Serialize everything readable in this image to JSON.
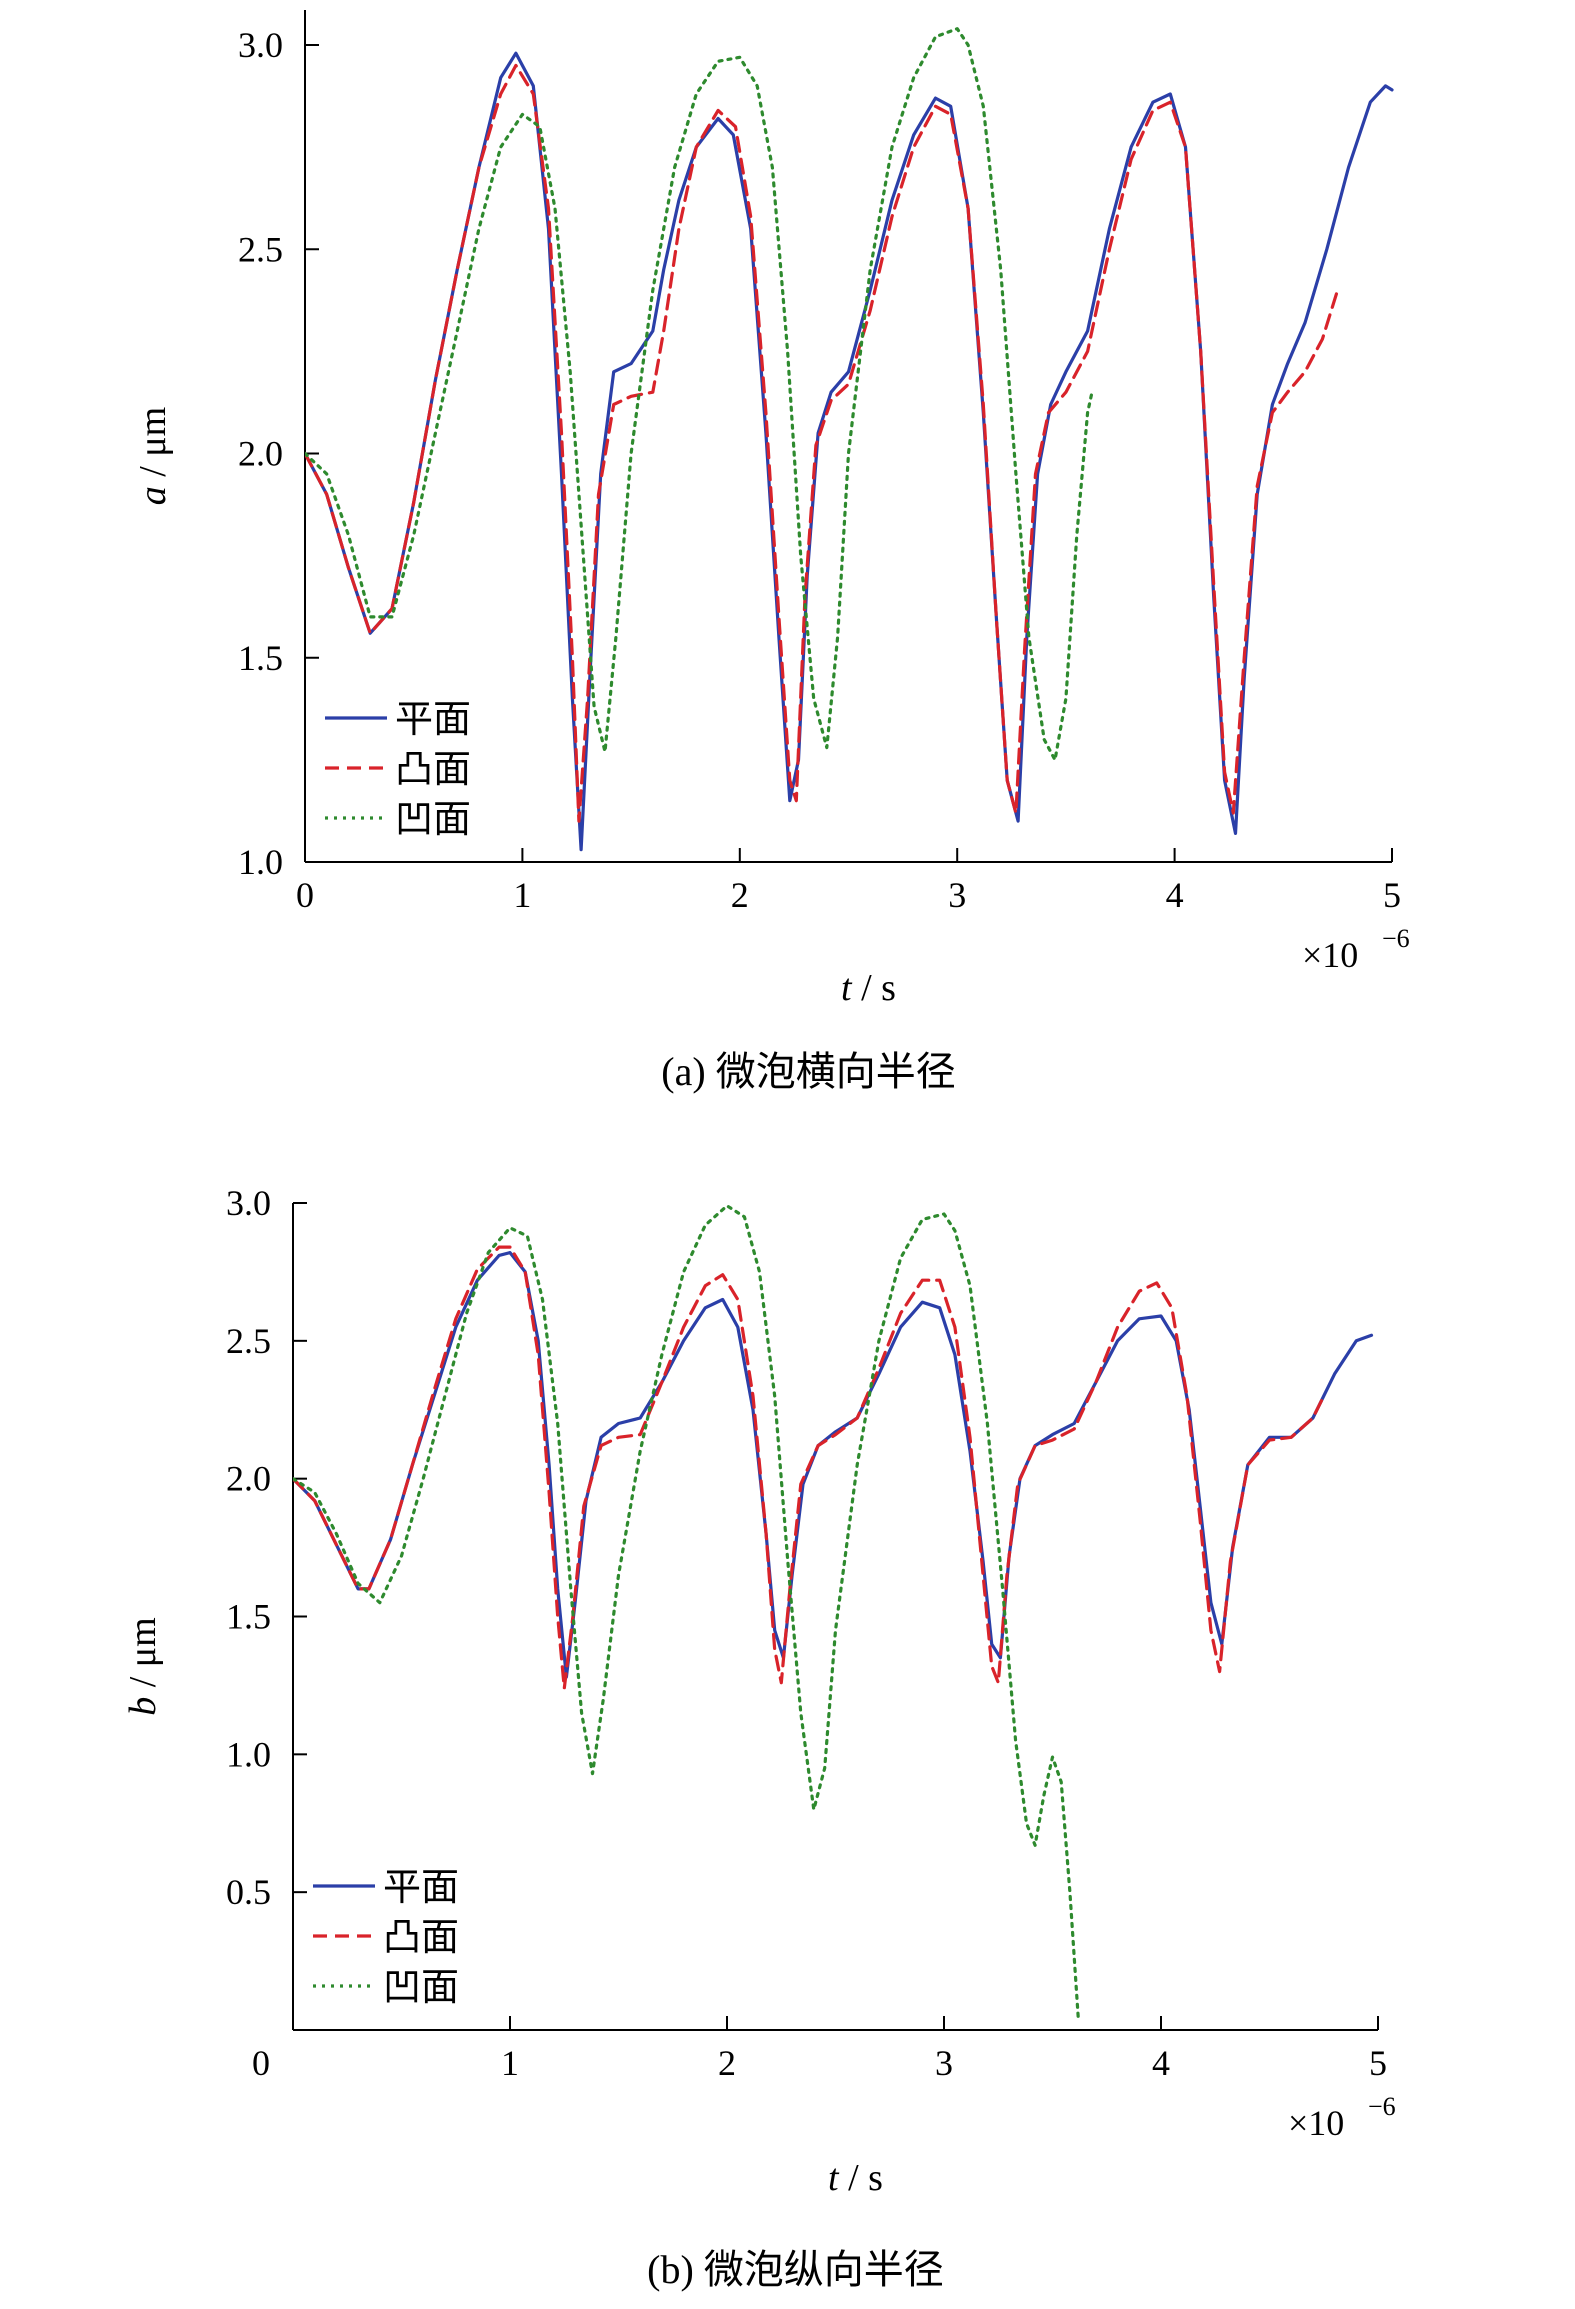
{
  "chart_data": [
    {
      "type": "line",
      "caption": "(a) 微泡横向半径",
      "xlabel": {
        "var": "t",
        "unit": " / s"
      },
      "ylabel": {
        "var": "a",
        "unit": " / μm"
      },
      "x_multiplier": "×10",
      "x_exponent": "−6",
      "xlim": [
        0,
        5
      ],
      "ylim": [
        1.0,
        3.1
      ],
      "xticks": [
        0,
        1,
        2,
        3,
        4,
        5
      ],
      "xtick_labels": [
        "0",
        "1",
        "2",
        "3",
        "4",
        "5"
      ],
      "yticks": [
        1.0,
        1.5,
        2.0,
        2.5,
        3.0
      ],
      "ytick_labels": [
        "1.0",
        "1.5",
        "2.0",
        "2.5",
        "3.0"
      ],
      "legend_placement": "bottom-left",
      "grid": false,
      "series": [
        {
          "name": "平面",
          "color": "#2b3fa8",
          "style": "solid",
          "x": [
            0,
            0.1,
            0.2,
            0.3,
            0.4,
            0.5,
            0.6,
            0.7,
            0.8,
            0.9,
            0.97,
            1.05,
            1.12,
            1.18,
            1.23,
            1.27,
            1.31,
            1.36,
            1.42,
            1.5,
            1.6,
            1.65,
            1.72,
            1.8,
            1.9,
            1.97,
            2.05,
            2.12,
            2.18,
            2.23,
            2.27,
            2.31,
            2.36,
            2.42,
            2.5,
            2.6,
            2.7,
            2.8,
            2.9,
            2.97,
            3.05,
            3.12,
            3.18,
            3.23,
            3.28,
            3.32,
            3.37,
            3.43,
            3.5,
            3.6,
            3.7,
            3.8,
            3.9,
            3.98,
            4.05,
            4.12,
            4.18,
            4.23,
            4.28,
            4.32,
            4.38,
            4.45,
            4.52,
            4.6,
            4.7,
            4.8,
            4.9,
            4.97,
            5.0
          ],
          "y": [
            2.0,
            1.9,
            1.72,
            1.56,
            1.62,
            1.88,
            2.18,
            2.45,
            2.7,
            2.92,
            2.98,
            2.9,
            2.55,
            1.95,
            1.4,
            1.03,
            1.45,
            1.95,
            2.2,
            2.22,
            2.3,
            2.45,
            2.62,
            2.75,
            2.82,
            2.78,
            2.55,
            2.05,
            1.55,
            1.15,
            1.25,
            1.7,
            2.05,
            2.15,
            2.2,
            2.4,
            2.62,
            2.78,
            2.87,
            2.85,
            2.6,
            2.1,
            1.6,
            1.2,
            1.1,
            1.55,
            1.95,
            2.12,
            2.2,
            2.3,
            2.55,
            2.75,
            2.86,
            2.88,
            2.75,
            2.25,
            1.65,
            1.2,
            1.07,
            1.45,
            1.9,
            2.12,
            2.22,
            2.32,
            2.5,
            2.7,
            2.86,
            2.9,
            2.89
          ]
        },
        {
          "name": "凸面",
          "color": "#d9232a",
          "style": "dashed",
          "x": [
            0,
            0.1,
            0.2,
            0.3,
            0.4,
            0.5,
            0.6,
            0.7,
            0.8,
            0.9,
            0.97,
            1.05,
            1.12,
            1.18,
            1.23,
            1.26,
            1.3,
            1.35,
            1.42,
            1.5,
            1.6,
            1.65,
            1.72,
            1.8,
            1.9,
            1.98,
            2.05,
            2.12,
            2.18,
            2.23,
            2.26,
            2.3,
            2.35,
            2.42,
            2.5,
            2.6,
            2.7,
            2.8,
            2.9,
            2.97,
            3.05,
            3.12,
            3.18,
            3.23,
            3.27,
            3.31,
            3.36,
            3.42,
            3.5,
            3.6,
            3.7,
            3.8,
            3.9,
            3.98,
            4.05,
            4.12,
            4.18,
            4.23,
            4.27,
            4.32,
            4.38,
            4.45,
            4.52,
            4.6,
            4.68,
            4.75
          ],
          "y": [
            2.0,
            1.9,
            1.72,
            1.56,
            1.62,
            1.88,
            2.18,
            2.45,
            2.7,
            2.88,
            2.95,
            2.88,
            2.6,
            2.05,
            1.5,
            1.1,
            1.4,
            1.9,
            2.12,
            2.14,
            2.15,
            2.3,
            2.55,
            2.75,
            2.84,
            2.8,
            2.58,
            2.1,
            1.6,
            1.2,
            1.15,
            1.65,
            2.02,
            2.13,
            2.17,
            2.35,
            2.58,
            2.75,
            2.85,
            2.83,
            2.6,
            2.12,
            1.6,
            1.2,
            1.12,
            1.52,
            1.95,
            2.1,
            2.15,
            2.25,
            2.5,
            2.72,
            2.84,
            2.86,
            2.75,
            2.25,
            1.68,
            1.22,
            1.12,
            1.5,
            1.92,
            2.1,
            2.15,
            2.2,
            2.28,
            2.4
          ]
        },
        {
          "name": "凹面",
          "color": "#2e8a2e",
          "style": "dotted",
          "x": [
            0,
            0.1,
            0.2,
            0.3,
            0.4,
            0.5,
            0.6,
            0.7,
            0.8,
            0.9,
            1.0,
            1.08,
            1.15,
            1.22,
            1.28,
            1.33,
            1.38,
            1.43,
            1.5,
            1.6,
            1.7,
            1.8,
            1.9,
            2.0,
            2.08,
            2.15,
            2.22,
            2.28,
            2.34,
            2.4,
            2.45,
            2.5,
            2.6,
            2.7,
            2.8,
            2.9,
            3.0,
            3.05,
            3.12,
            3.2,
            3.27,
            3.33,
            3.4,
            3.45,
            3.5,
            3.55,
            3.6,
            3.62
          ],
          "y": [
            2.0,
            1.95,
            1.8,
            1.6,
            1.6,
            1.8,
            2.05,
            2.3,
            2.55,
            2.75,
            2.83,
            2.8,
            2.6,
            2.2,
            1.75,
            1.38,
            1.27,
            1.55,
            2.0,
            2.4,
            2.7,
            2.88,
            2.96,
            2.97,
            2.9,
            2.7,
            2.25,
            1.75,
            1.4,
            1.28,
            1.55,
            2.0,
            2.45,
            2.75,
            2.92,
            3.02,
            3.04,
            3.0,
            2.85,
            2.45,
            1.95,
            1.55,
            1.3,
            1.25,
            1.4,
            1.8,
            2.1,
            2.15
          ]
        }
      ]
    },
    {
      "type": "line",
      "caption": "(b) 微泡纵向半径",
      "xlabel": {
        "var": "t",
        "unit": " / s"
      },
      "ylabel": {
        "var": "b",
        "unit": " / μm"
      },
      "x_multiplier": "×10",
      "x_exponent": "−6",
      "xlim": [
        0,
        5
      ],
      "ylim": [
        0,
        3.0
      ],
      "xticks": [
        0,
        1,
        2,
        3,
        4,
        5
      ],
      "xtick_labels": [
        "0",
        "1",
        "2",
        "3",
        "4",
        "5"
      ],
      "yticks": [
        0.5,
        1.0,
        1.5,
        2.0,
        2.5,
        3.0
      ],
      "ytick_labels": [
        "0.5",
        "1.0",
        "1.5",
        "2.0",
        "2.5",
        "3.0"
      ],
      "origin_label": "0",
      "legend_placement": "bottom-left",
      "grid": false,
      "series": [
        {
          "name": "平面",
          "color": "#2b3fa8",
          "style": "solid",
          "x": [
            0,
            0.1,
            0.2,
            0.3,
            0.35,
            0.45,
            0.55,
            0.65,
            0.75,
            0.85,
            0.95,
            1.0,
            1.07,
            1.13,
            1.18,
            1.22,
            1.26,
            1.3,
            1.35,
            1.42,
            1.5,
            1.6,
            1.7,
            1.8,
            1.9,
            1.98,
            2.05,
            2.12,
            2.18,
            2.22,
            2.26,
            2.3,
            2.35,
            2.42,
            2.5,
            2.6,
            2.7,
            2.8,
            2.9,
            2.98,
            3.05,
            3.12,
            3.18,
            3.22,
            3.26,
            3.3,
            3.35,
            3.42,
            3.5,
            3.6,
            3.7,
            3.8,
            3.9,
            4.0,
            4.07,
            4.13,
            4.18,
            4.23,
            4.28,
            4.33,
            4.4,
            4.5,
            4.6,
            4.7,
            4.8,
            4.9,
            4.97
          ],
          "y": [
            2.0,
            1.92,
            1.76,
            1.6,
            1.6,
            1.78,
            2.05,
            2.3,
            2.55,
            2.72,
            2.81,
            2.82,
            2.75,
            2.5,
            2.05,
            1.6,
            1.28,
            1.55,
            1.92,
            2.15,
            2.2,
            2.22,
            2.35,
            2.5,
            2.62,
            2.65,
            2.55,
            2.25,
            1.8,
            1.45,
            1.35,
            1.65,
            1.98,
            2.12,
            2.17,
            2.22,
            2.38,
            2.55,
            2.64,
            2.62,
            2.45,
            2.1,
            1.7,
            1.4,
            1.35,
            1.72,
            2.0,
            2.12,
            2.16,
            2.2,
            2.35,
            2.5,
            2.58,
            2.59,
            2.5,
            2.25,
            1.9,
            1.55,
            1.4,
            1.75,
            2.05,
            2.15,
            2.15,
            2.22,
            2.38,
            2.5,
            2.52
          ]
        },
        {
          "name": "凸面",
          "color": "#d9232a",
          "style": "dashed",
          "x": [
            0,
            0.1,
            0.2,
            0.3,
            0.35,
            0.45,
            0.55,
            0.65,
            0.75,
            0.85,
            0.95,
            1.0,
            1.07,
            1.13,
            1.18,
            1.22,
            1.25,
            1.29,
            1.34,
            1.42,
            1.5,
            1.6,
            1.7,
            1.8,
            1.9,
            1.98,
            2.05,
            2.12,
            2.18,
            2.22,
            2.25,
            2.29,
            2.34,
            2.42,
            2.5,
            2.6,
            2.7,
            2.8,
            2.9,
            2.98,
            3.05,
            3.12,
            3.18,
            3.22,
            3.25,
            3.29,
            3.34,
            3.42,
            3.5,
            3.6,
            3.7,
            3.8,
            3.9,
            3.98,
            4.05,
            4.12,
            4.18,
            4.23,
            4.27,
            4.32,
            4.4,
            4.5,
            4.6,
            4.7,
            4.75
          ],
          "y": [
            2.0,
            1.92,
            1.76,
            1.6,
            1.6,
            1.78,
            2.05,
            2.32,
            2.58,
            2.76,
            2.84,
            2.84,
            2.75,
            2.45,
            1.95,
            1.5,
            1.24,
            1.5,
            1.9,
            2.12,
            2.15,
            2.16,
            2.35,
            2.55,
            2.7,
            2.74,
            2.65,
            2.3,
            1.8,
            1.38,
            1.26,
            1.6,
            1.98,
            2.12,
            2.16,
            2.22,
            2.4,
            2.6,
            2.72,
            2.72,
            2.55,
            2.15,
            1.65,
            1.32,
            1.26,
            1.65,
            1.98,
            2.12,
            2.14,
            2.18,
            2.35,
            2.55,
            2.68,
            2.71,
            2.62,
            2.3,
            1.85,
            1.45,
            1.3,
            1.7,
            2.05,
            2.14,
            2.15,
            2.22,
            2.3
          ]
        },
        {
          "name": "凹面",
          "color": "#2e8a2e",
          "style": "dotted",
          "x": [
            0,
            0.1,
            0.2,
            0.3,
            0.4,
            0.5,
            0.6,
            0.7,
            0.8,
            0.9,
            1.0,
            1.08,
            1.15,
            1.22,
            1.28,
            1.33,
            1.38,
            1.43,
            1.5,
            1.6,
            1.7,
            1.8,
            1.9,
            2.0,
            2.08,
            2.15,
            2.22,
            2.28,
            2.34,
            2.4,
            2.45,
            2.5,
            2.6,
            2.7,
            2.8,
            2.9,
            3.0,
            3.05,
            3.12,
            3.2,
            3.27,
            3.33,
            3.38,
            3.42,
            3.46,
            3.5,
            3.54,
            3.58,
            3.62
          ],
          "y": [
            2.0,
            1.95,
            1.8,
            1.62,
            1.55,
            1.72,
            2.0,
            2.3,
            2.6,
            2.82,
            2.91,
            2.88,
            2.65,
            2.2,
            1.6,
            1.15,
            0.93,
            1.2,
            1.65,
            2.1,
            2.45,
            2.75,
            2.92,
            2.99,
            2.95,
            2.75,
            2.3,
            1.7,
            1.15,
            0.8,
            0.95,
            1.45,
            2.05,
            2.5,
            2.8,
            2.94,
            2.96,
            2.9,
            2.7,
            2.2,
            1.6,
            1.05,
            0.75,
            0.67,
            0.85,
            0.99,
            0.9,
            0.5,
            0.03
          ]
        }
      ]
    }
  ]
}
